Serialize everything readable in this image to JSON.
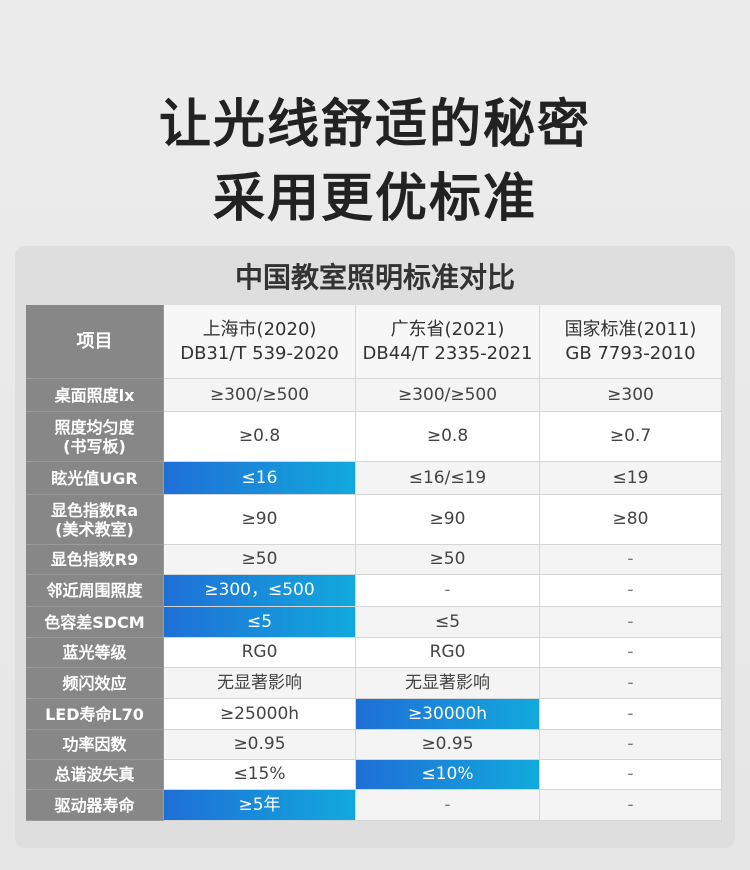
{
  "headline": {
    "line1": "让光线舒适的秘密",
    "line2": "采用更优标准"
  },
  "subtitle": "中国教室照明标准对比",
  "columns": {
    "item": "项目",
    "c1": {
      "name": "上海市(2020)",
      "code": "DB31/T 539-2020"
    },
    "c2": {
      "name": "广东省(2021)",
      "code": "DB44/T 2335-2021"
    },
    "c3": {
      "name": "国家标准(2011)",
      "code": "GB 7793-2010"
    }
  },
  "rows": [
    {
      "label": [
        "桌面照度lx"
      ],
      "v": [
        "≥300/≥500",
        "≥300/≥500",
        "≥300"
      ],
      "hl": [
        false,
        false,
        false
      ]
    },
    {
      "label": [
        "照度均匀度",
        "(书写板)"
      ],
      "v": [
        "≥0.8",
        "≥0.8",
        "≥0.7"
      ],
      "hl": [
        false,
        false,
        false
      ]
    },
    {
      "label": [
        "眩光值UGR"
      ],
      "v": [
        "≤16",
        "≤16/≤19",
        "≤19"
      ],
      "hl": [
        true,
        false,
        false
      ]
    },
    {
      "label": [
        "显色指数Ra",
        "(美术教室)"
      ],
      "v": [
        "≥90",
        "≥90",
        "≥80"
      ],
      "hl": [
        false,
        false,
        false
      ]
    },
    {
      "label": [
        "显色指数R9"
      ],
      "v": [
        "≥50",
        "≥50",
        "-"
      ],
      "hl": [
        false,
        false,
        false
      ]
    },
    {
      "label": [
        "邻近周围照度"
      ],
      "v": [
        "≥300，≤500",
        "-",
        "-"
      ],
      "hl": [
        true,
        false,
        false
      ]
    },
    {
      "label": [
        "色容差SDCM"
      ],
      "v": [
        "≤5",
        "≤5",
        "-"
      ],
      "hl": [
        true,
        false,
        false
      ]
    },
    {
      "label": [
        "蓝光等级"
      ],
      "v": [
        "RG0",
        "RG0",
        "-"
      ],
      "hl": [
        false,
        false,
        false
      ]
    },
    {
      "label": [
        "频闪效应"
      ],
      "v": [
        "无显著影响",
        "无显著影响",
        "-"
      ],
      "hl": [
        false,
        false,
        false
      ]
    },
    {
      "label": [
        "LED寿命L70"
      ],
      "v": [
        "≥25000h",
        "≥30000h",
        "-"
      ],
      "hl": [
        false,
        true,
        false
      ]
    },
    {
      "label": [
        "功率因数"
      ],
      "v": [
        "≥0.95",
        "≥0.95",
        "-"
      ],
      "hl": [
        false,
        false,
        false
      ]
    },
    {
      "label": [
        "总谐波失真"
      ],
      "v": [
        "≤15%",
        "≤10%",
        "-"
      ],
      "hl": [
        false,
        true,
        false
      ]
    },
    {
      "label": [
        "驱动器寿命"
      ],
      "v": [
        "≥5年",
        "-",
        "-"
      ],
      "hl": [
        true,
        false,
        false
      ]
    }
  ]
}
